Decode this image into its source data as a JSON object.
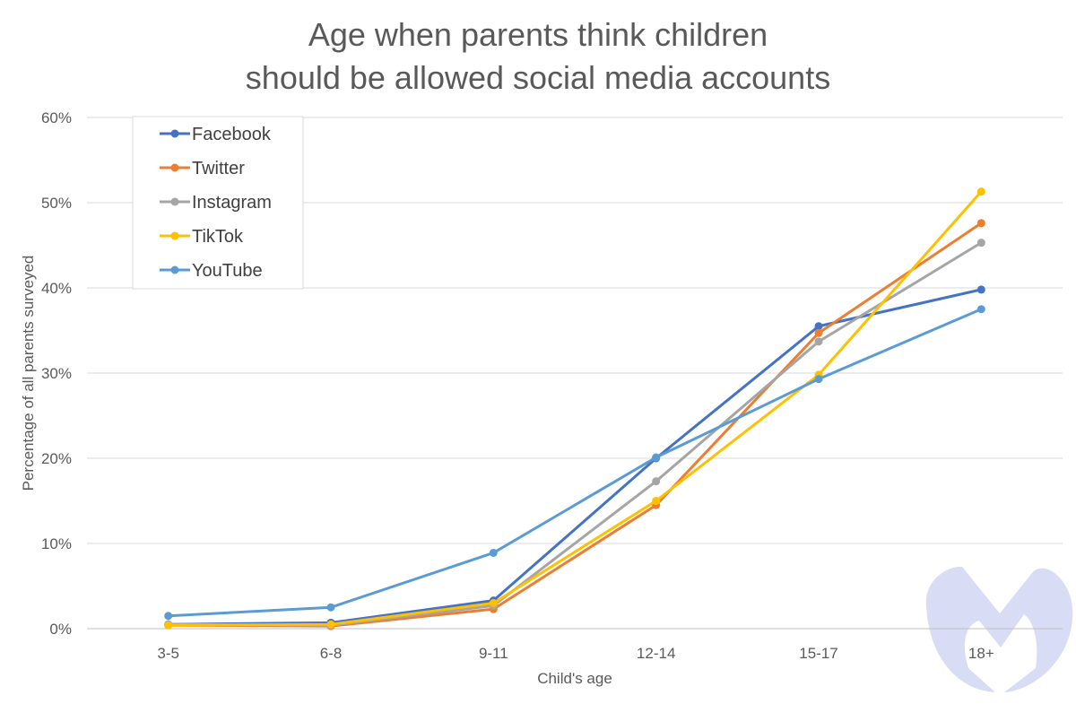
{
  "chart_data": {
    "type": "line",
    "title": [
      "Age when parents think children",
      "should be allowed social media accounts"
    ],
    "xlabel": "Child's age",
    "ylabel": "Percentage of all parents surveyed",
    "categories": [
      "3-5",
      "6-8",
      "9-11",
      "12-14",
      "15-17",
      "18+"
    ],
    "ylim": [
      0,
      60
    ],
    "yticks": [
      "0%",
      "10%",
      "20%",
      "30%",
      "40%",
      "50%",
      "60%"
    ],
    "grid": "horizontal",
    "legend_position": "top-left",
    "series": [
      {
        "name": "Facebook",
        "color": "#4472C4",
        "values": [
          0.5,
          0.7,
          3.3,
          20.0,
          35.5,
          39.8
        ]
      },
      {
        "name": "Twitter",
        "color": "#ED7D31",
        "values": [
          0.4,
          0.3,
          2.3,
          14.5,
          34.7,
          47.6
        ]
      },
      {
        "name": "Instagram",
        "color": "#A5A5A5",
        "values": [
          0.5,
          0.4,
          2.7,
          17.3,
          33.7,
          45.3
        ]
      },
      {
        "name": "TikTok",
        "color": "#FFC000",
        "values": [
          0.4,
          0.5,
          3.0,
          15.0,
          29.8,
          51.3
        ]
      },
      {
        "name": "YouTube",
        "color": "#5B9BD5",
        "values": [
          1.5,
          2.5,
          8.9,
          20.1,
          29.3,
          37.5
        ]
      }
    ]
  },
  "watermark": {
    "icon": "malwarebytes-logo-icon",
    "color": "#D8DCF5"
  }
}
